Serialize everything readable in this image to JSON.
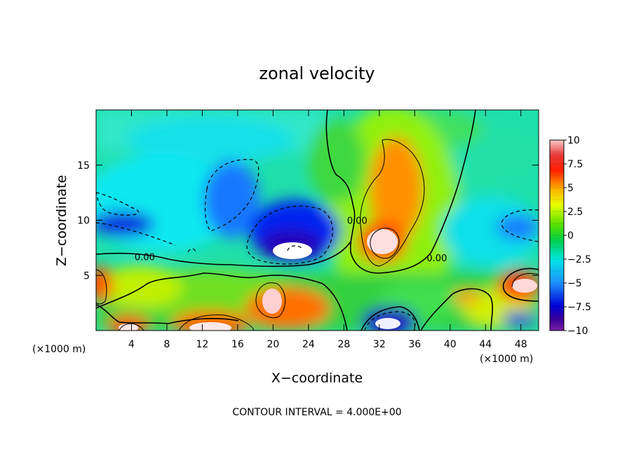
{
  "chart_data": {
    "type": "heatmap",
    "title": "zonal velocity",
    "xlabel": "X−coordinate",
    "ylabel": "Z−coordinate",
    "x_unit_left": "(×1000 m)",
    "x_unit_right": "(×1000 m)",
    "x_ticks": [
      4,
      8,
      12,
      16,
      20,
      24,
      28,
      32,
      36,
      40,
      44,
      48
    ],
    "x_tick_labels": [
      "4",
      "8",
      "12",
      "16",
      "20",
      "24",
      "28",
      "32",
      "36",
      "40",
      "44",
      "48"
    ],
    "y_ticks": [
      5,
      10,
      15
    ],
    "y_tick_labels": [
      "5",
      "10",
      "15"
    ],
    "xlim": [
      0,
      50
    ],
    "ylim": [
      0,
      20
    ],
    "colorbar": {
      "range": [
        -10,
        10
      ],
      "ticks": [
        10,
        7.5,
        5,
        2.5,
        0,
        -2.5,
        -5,
        -7.5,
        -10
      ],
      "tick_labels": [
        "10",
        "7.5",
        "5",
        "2.5",
        "0",
        "−2.5",
        "−5",
        "−7.5",
        "−10"
      ]
    },
    "contour_labels": [
      {
        "text": "0.00",
        "x": 5.5,
        "y": 6.7
      },
      {
        "text": "0.00",
        "x": 29.5,
        "y": 10.0
      },
      {
        "text": "0.00",
        "x": 38.5,
        "y": 6.6
      }
    ],
    "features": [
      {
        "kind": "low",
        "x": 22,
        "y": 7.2,
        "value": -10
      },
      {
        "kind": "low",
        "x": 18,
        "y": 12.5,
        "value": -6
      },
      {
        "kind": "low",
        "x": 3,
        "y": 9.5,
        "value": -7
      },
      {
        "kind": "low",
        "x": 33,
        "y": 1,
        "value": -9
      },
      {
        "kind": "low",
        "x": 47,
        "y": 8.5,
        "value": -5
      },
      {
        "kind": "high",
        "x": 32.5,
        "y": 8,
        "value": 10
      },
      {
        "kind": "high",
        "x": 33.5,
        "y": 14,
        "value": 5
      },
      {
        "kind": "high",
        "x": 20,
        "y": 2.8,
        "value": 9
      },
      {
        "kind": "high",
        "x": 13.5,
        "y": 0.4,
        "value": 9
      },
      {
        "kind": "high",
        "x": 4,
        "y": 0.4,
        "value": 9
      },
      {
        "kind": "high",
        "x": 48,
        "y": 4,
        "value": 10
      },
      {
        "kind": "high",
        "x": 0.6,
        "y": 4,
        "value": 7
      }
    ],
    "footnote": "CONTOUR INTERVAL = 4.000E+00"
  }
}
